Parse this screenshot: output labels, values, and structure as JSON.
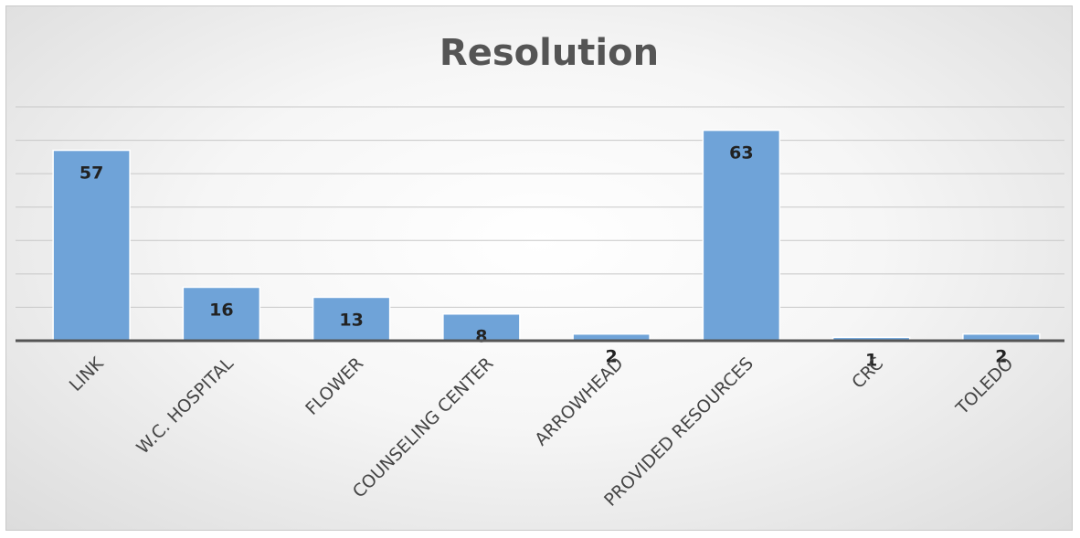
{
  "chart_data": {
    "type": "bar",
    "title": "Resolution",
    "categories": [
      "LINK",
      "W.C. HOSPITAL",
      "FLOWER",
      "COUNSELING CENTER",
      "ARROWHEAD",
      "PROVIDED RESOURCES",
      "CRC",
      "TOLEDO"
    ],
    "values": [
      57,
      16,
      13,
      8,
      2,
      63,
      1,
      2
    ],
    "data_labels": [
      "57",
      "16",
      "13",
      "8",
      "2",
      "63",
      "1",
      "2"
    ],
    "xlabel": "",
    "ylabel": "",
    "ylim": [
      0,
      70
    ],
    "grid_step": 10,
    "grid": true,
    "legend": false,
    "colors": {
      "bar": "#6fa3d8",
      "bar_edge": "#ffffff",
      "title": "#555555",
      "axis": "#555555",
      "grid": "#c8c8c8"
    }
  }
}
